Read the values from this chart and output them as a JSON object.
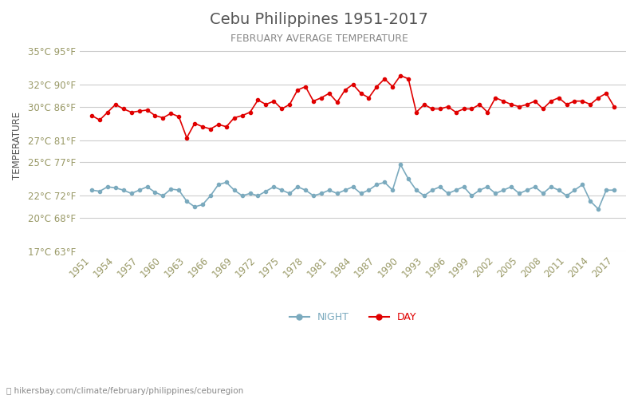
{
  "title": "Cebu Philippines 1951-2017",
  "subtitle": "FEBRUARY AVERAGE TEMPERATURE",
  "ylabel": "TEMPERATURE",
  "footer": "hikersbay.com/climate/february/philippines/ceburegion",
  "years": [
    1951,
    1952,
    1953,
    1954,
    1955,
    1956,
    1957,
    1958,
    1959,
    1960,
    1961,
    1962,
    1963,
    1964,
    1965,
    1966,
    1967,
    1968,
    1969,
    1970,
    1971,
    1972,
    1973,
    1974,
    1975,
    1976,
    1977,
    1978,
    1979,
    1980,
    1981,
    1982,
    1983,
    1984,
    1985,
    1986,
    1987,
    1988,
    1989,
    1990,
    1991,
    1992,
    1993,
    1994,
    1995,
    1996,
    1997,
    1998,
    1999,
    2000,
    2001,
    2002,
    2003,
    2004,
    2005,
    2006,
    2007,
    2008,
    2009,
    2010,
    2011,
    2012,
    2013,
    2014,
    2015,
    2016,
    2017
  ],
  "day_temps": [
    29.2,
    28.8,
    29.5,
    30.2,
    29.8,
    29.5,
    29.6,
    29.7,
    29.2,
    29.0,
    29.4,
    29.1,
    27.2,
    28.5,
    28.2,
    28.0,
    28.4,
    28.2,
    29.0,
    29.2,
    29.5,
    30.6,
    30.2,
    30.5,
    29.8,
    30.2,
    31.5,
    31.8,
    30.5,
    30.8,
    31.2,
    30.4,
    31.5,
    32.0,
    31.2,
    30.8,
    31.8,
    32.5,
    31.8,
    32.8,
    32.5,
    29.5,
    30.2,
    29.8,
    29.8,
    30.0,
    29.5,
    29.8,
    29.8,
    30.2,
    29.5,
    30.8,
    30.5,
    30.2,
    30.0,
    30.2,
    30.5,
    29.8,
    30.5,
    30.8,
    30.2,
    30.5,
    30.5,
    30.2,
    30.8,
    31.2,
    30.0
  ],
  "night_temps": [
    22.5,
    22.4,
    22.8,
    22.7,
    22.5,
    22.2,
    22.5,
    22.8,
    22.3,
    22.0,
    22.6,
    22.5,
    21.5,
    21.0,
    21.2,
    22.0,
    23.0,
    23.2,
    22.5,
    22.0,
    22.2,
    22.0,
    22.4,
    22.8,
    22.5,
    22.2,
    22.8,
    22.5,
    22.0,
    22.2,
    22.5,
    22.2,
    22.5,
    22.8,
    22.2,
    22.5,
    23.0,
    23.2,
    22.5,
    24.8,
    23.5,
    22.5,
    22.0,
    22.5,
    22.8,
    22.2,
    22.5,
    22.8,
    22.0,
    22.5,
    22.8,
    22.2,
    22.5,
    22.8,
    22.2,
    22.5,
    22.8,
    22.2,
    22.8,
    22.5,
    22.0,
    22.5,
    23.0,
    21.5,
    20.8,
    22.5,
    22.5
  ],
  "day_color": "#e00000",
  "night_color": "#7baabe",
  "grid_color": "#cccccc",
  "bg_color": "#ffffff",
  "title_color": "#555555",
  "subtitle_color": "#888888",
  "ylabel_color": "#555555",
  "tick_color": "#999966",
  "yticks_c": [
    17,
    20,
    22,
    25,
    27,
    30,
    32,
    35
  ],
  "yticks_f": [
    63,
    68,
    72,
    77,
    81,
    86,
    90,
    95
  ],
  "xtick_years": [
    1951,
    1954,
    1957,
    1960,
    1963,
    1966,
    1969,
    1972,
    1975,
    1978,
    1981,
    1984,
    1987,
    1990,
    1993,
    1996,
    1999,
    2002,
    2005,
    2008,
    2011,
    2014,
    2017
  ],
  "ylim": [
    17,
    36
  ],
  "footer_color": "#888888",
  "legend_night_label": "NIGHT",
  "legend_day_label": "DAY"
}
